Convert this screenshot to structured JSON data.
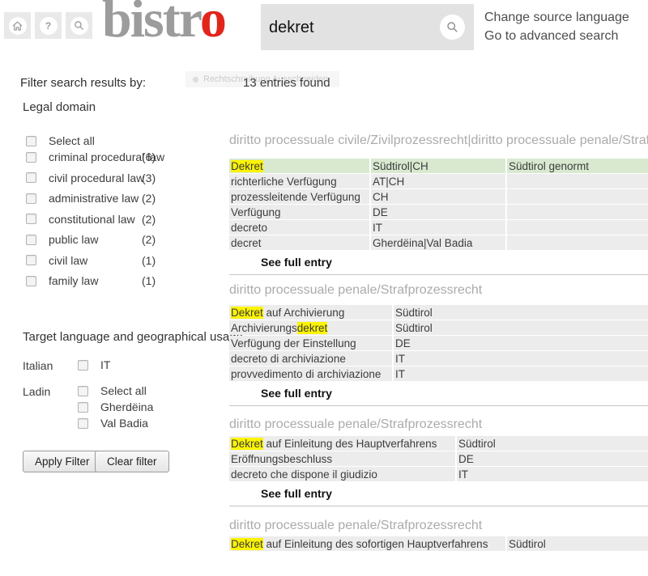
{
  "header": {
    "nav": [
      {
        "name": "home"
      },
      {
        "name": "help",
        "label": "?"
      },
      {
        "name": "search"
      }
    ],
    "logo_gray": "bistr",
    "logo_red": "o",
    "search_value": "dekret",
    "link_change_source": "Change source language",
    "link_advanced_search": "Go to advanced search"
  },
  "sidebar": {
    "filter_title": "Filter search results by:",
    "legal_domain_heading": "Legal domain",
    "legal_domains": [
      {
        "label": "Select all",
        "count": ""
      },
      {
        "label": "criminal procedural law",
        "count": "(6)"
      },
      {
        "label": "civil procedural law",
        "count": "(3)"
      },
      {
        "label": "administrative law",
        "count": "(2)"
      },
      {
        "label": "constitutional law",
        "count": "(2)"
      },
      {
        "label": "public law",
        "count": "(2)"
      },
      {
        "label": "civil law",
        "count": "(1)"
      },
      {
        "label": "family law",
        "count": "(1)"
      }
    ],
    "target_heading": "Target language and geographical usage",
    "italian_label": "Italian",
    "italian_options": [
      {
        "label": "IT"
      }
    ],
    "ladin_label": "Ladin",
    "ladin_options": [
      {
        "label": "Select all"
      },
      {
        "label": "Gherdëina"
      },
      {
        "label": "Val Badia"
      }
    ],
    "apply_button": "Apply Filter",
    "clear_button": "Clear filter"
  },
  "results": {
    "ghost_text": "Rechtschreibung Ausschneiden",
    "count_text": "13 entries found",
    "entries": [
      {
        "domain": "diritto processuale civile/Zivilprozessrecht|diritto processuale penale/Strafprozessrecht",
        "see_full_entry": "See full entry",
        "rows": [
          {
            "green": true,
            "cells": [
              [
                {
                  "t": "Dekret",
                  "hl": true
                }
              ],
              [
                {
                  "t": "Südtirol|CH"
                }
              ],
              [
                {
                  "t": "Südtirol genormt"
                }
              ]
            ]
          },
          {
            "cells": [
              [
                {
                  "t": "richterliche Verfügung"
                }
              ],
              [
                {
                  "t": "AT|CH"
                }
              ],
              []
            ]
          },
          {
            "cells": [
              [
                {
                  "t": "prozessleitende Verfügung"
                }
              ],
              [
                {
                  "t": "CH"
                }
              ],
              []
            ]
          },
          {
            "cells": [
              [
                {
                  "t": "Verfügung"
                }
              ],
              [
                {
                  "t": "DE"
                }
              ],
              []
            ]
          },
          {
            "cells": [
              [
                {
                  "t": "decreto"
                }
              ],
              [
                {
                  "t": "IT"
                }
              ],
              []
            ]
          },
          {
            "cells": [
              [
                {
                  "t": "decret"
                }
              ],
              [
                {
                  "t": "Gherdëina|Val Badia"
                }
              ],
              []
            ]
          }
        ]
      },
      {
        "domain": "diritto processuale penale/Strafprozessrecht",
        "see_full_entry": "See full entry",
        "rows": [
          {
            "cells": [
              [
                {
                  "t": "Dekret",
                  "hl": true
                },
                {
                  "t": " auf Archivierung"
                }
              ],
              [
                {
                  "t": "Südtirol"
                }
              ]
            ]
          },
          {
            "cells": [
              [
                {
                  "t": "Archivierungs"
                },
                {
                  "t": "dekret",
                  "hl": true
                }
              ],
              [
                {
                  "t": "Südtirol"
                }
              ]
            ]
          },
          {
            "cells": [
              [
                {
                  "t": "Verfügung der Einstellung"
                }
              ],
              [
                {
                  "t": "DE"
                }
              ]
            ]
          },
          {
            "cells": [
              [
                {
                  "t": "decreto di archiviazione"
                }
              ],
              [
                {
                  "t": "IT"
                }
              ]
            ]
          },
          {
            "cells": [
              [
                {
                  "t": "provvedimento di archiviazione"
                }
              ],
              [
                {
                  "t": "IT"
                }
              ]
            ]
          }
        ]
      },
      {
        "domain": "diritto processuale penale/Strafprozessrecht",
        "see_full_entry": "See full entry",
        "rows": [
          {
            "cells": [
              [
                {
                  "t": "Dekret",
                  "hl": true
                },
                {
                  "t": " auf Einleitung des Hauptverfahrens"
                }
              ],
              [
                {
                  "t": "Südtirol"
                }
              ]
            ]
          },
          {
            "cells": [
              [
                {
                  "t": "Eröffnungsbeschluss"
                }
              ],
              [
                {
                  "t": "DE"
                }
              ]
            ]
          },
          {
            "cells": [
              [
                {
                  "t": "decreto che dispone il giudizio"
                }
              ],
              [
                {
                  "t": "IT"
                }
              ]
            ]
          }
        ]
      },
      {
        "domain": "diritto processuale penale/Strafprozessrecht",
        "rows": [
          {
            "cells": [
              [
                {
                  "t": "Dekret",
                  "hl": true
                },
                {
                  "t": " auf Einleitung des sofortigen Hauptverfahrens"
                }
              ],
              [
                {
                  "t": "Südtirol"
                }
              ]
            ]
          }
        ]
      }
    ]
  },
  "colors": {
    "logo_red": "#e1251b",
    "highlight_yellow": "#fcf400",
    "matched_row_green": "#d8e9d0",
    "row_gray": "#ececec"
  }
}
